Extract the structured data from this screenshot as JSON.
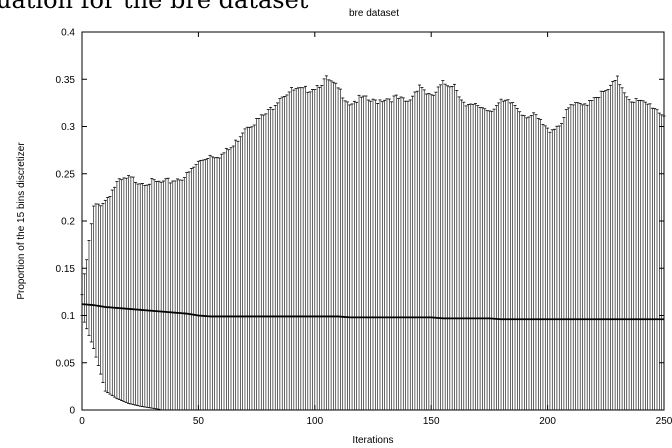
{
  "caption_fragment": "uation for the bre dataset",
  "chart_data": {
    "type": "line",
    "title": "bre dataset",
    "xlabel": "Iterations",
    "ylabel": "Proportion of the 15 bins discretizer",
    "xlim": [
      0,
      250
    ],
    "ylim": [
      0,
      0.4
    ],
    "x_ticks": [
      0,
      50,
      100,
      150,
      200,
      250
    ],
    "x_tick_labels": [
      "0",
      "50",
      "100",
      "150",
      "200",
      "250"
    ],
    "y_ticks": [
      0,
      0.05,
      0.1,
      0.15,
      0.2,
      0.25,
      0.3,
      0.35,
      0.4
    ],
    "y_tick_labels": [
      "0",
      "0.05",
      "0.1",
      "0.15",
      "0.2",
      "0.25",
      "0.3",
      "0.35",
      "0.4"
    ],
    "grid": false,
    "legend": "none",
    "series": [
      {
        "error_bars": true,
        "x": [
          0,
          5,
          10,
          15,
          20,
          25,
          30,
          35,
          40,
          45,
          50,
          55,
          60,
          65,
          70,
          75,
          80,
          85,
          90,
          95,
          100,
          105,
          110,
          115,
          120,
          125,
          130,
          135,
          140,
          145,
          150,
          155,
          160,
          165,
          170,
          175,
          180,
          185,
          190,
          195,
          200,
          205,
          210,
          215,
          220,
          225,
          230,
          235,
          240,
          245,
          250
        ],
        "y": [
          0.112,
          0.111,
          0.109,
          0.108,
          0.107,
          0.106,
          0.105,
          0.104,
          0.103,
          0.102,
          0.1,
          0.099,
          0.099,
          0.099,
          0.099,
          0.099,
          0.099,
          0.099,
          0.099,
          0.099,
          0.099,
          0.099,
          0.099,
          0.098,
          0.098,
          0.098,
          0.098,
          0.098,
          0.098,
          0.098,
          0.098,
          0.097,
          0.097,
          0.097,
          0.097,
          0.097,
          0.096,
          0.096,
          0.096,
          0.096,
          0.096,
          0.096,
          0.096,
          0.096,
          0.096,
          0.096,
          0.096,
          0.096,
          0.096,
          0.096,
          0.096
        ],
        "upper": [
          0.122,
          0.214,
          0.222,
          0.24,
          0.245,
          0.242,
          0.241,
          0.24,
          0.244,
          0.248,
          0.262,
          0.27,
          0.27,
          0.279,
          0.3,
          0.306,
          0.315,
          0.332,
          0.338,
          0.338,
          0.342,
          0.35,
          0.34,
          0.325,
          0.33,
          0.326,
          0.33,
          0.33,
          0.325,
          0.345,
          0.33,
          0.345,
          0.345,
          0.32,
          0.322,
          0.318,
          0.325,
          0.325,
          0.313,
          0.31,
          0.296,
          0.302,
          0.322,
          0.322,
          0.332,
          0.336,
          0.35,
          0.33,
          0.325,
          0.322,
          0.312
        ],
        "lower": [
          0.1,
          0.065,
          0.02,
          0.012,
          0.007,
          0.004,
          0.002,
          0.0,
          0.0,
          0.0,
          0.0,
          0.0,
          0.0,
          0.0,
          0.0,
          0.0,
          0.0,
          0.0,
          0.0,
          0.0,
          0.0,
          0.0,
          0.0,
          0.0,
          0.0,
          0.0,
          0.0,
          0.0,
          0.0,
          0.0,
          0.0,
          0.0,
          0.0,
          0.0,
          0.0,
          0.0,
          0.0,
          0.0,
          0.0,
          0.0,
          0.0,
          0.0,
          0.0,
          0.0,
          0.0,
          0.0,
          0.0,
          0.0,
          0.0,
          0.0,
          0.0
        ]
      }
    ]
  }
}
